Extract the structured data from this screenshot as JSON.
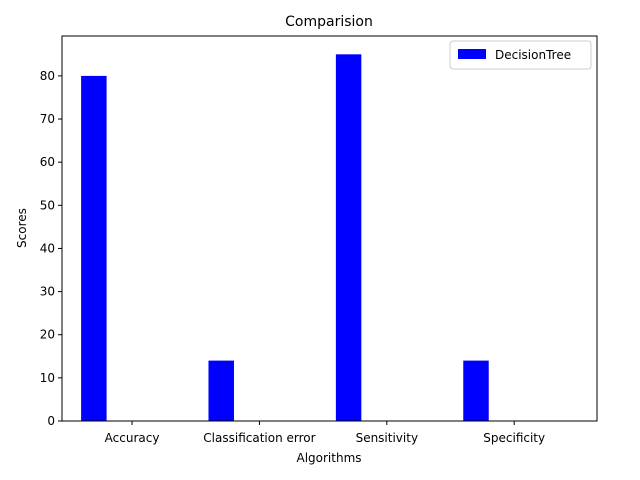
{
  "chart_data": {
    "type": "bar",
    "title": "Comparision",
    "xlabel": "Algorithms",
    "ylabel": "Scores",
    "categories": [
      "Accuracy",
      "Classification error",
      "Sensitivity",
      "Specificity"
    ],
    "series": [
      {
        "name": "DecisionTree",
        "values": [
          80,
          14,
          85,
          14
        ],
        "color": "#0000ff"
      }
    ],
    "ylim": [
      0,
      89.25
    ],
    "yticks": [
      0,
      10,
      20,
      30,
      40,
      50,
      60,
      70,
      80
    ],
    "grid": false,
    "legend": "top-right"
  }
}
